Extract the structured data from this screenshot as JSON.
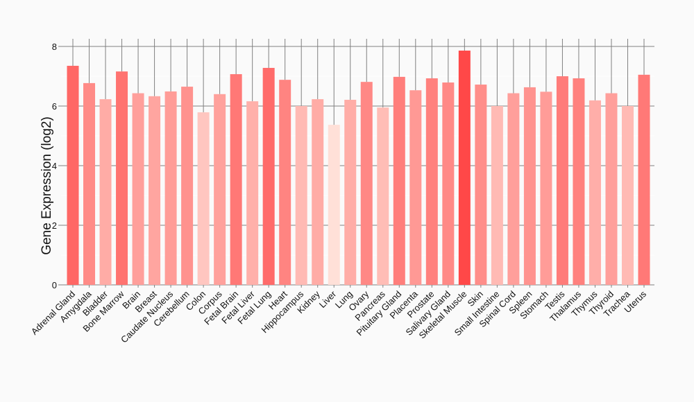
{
  "chart_data": {
    "type": "bar",
    "title": "",
    "xlabel": "",
    "ylabel": "Gene Expression (log2)",
    "ylim": [
      0,
      8
    ],
    "yticks": [
      0,
      2,
      4,
      6,
      8
    ],
    "grid": true,
    "categories": [
      "Adrenal Gland",
      "Amygdala",
      "Bladder",
      "Bone Marrow",
      "Brain",
      "Breast",
      "Caudate Nucleus",
      "Cerebellum",
      "Colon",
      "Corpus",
      "Fetal Brain",
      "Fetal Liver",
      "Fetal Lung",
      "Heart",
      "Hippocampus",
      "Kidney",
      "Liver",
      "Lung",
      "Ovary",
      "Pancreas",
      "Pituitary Gland",
      "Placenta",
      "Prostate",
      "Salivary Gland",
      "Skeletal Muscle",
      "Skin",
      "Small Intestine",
      "Spinal Cord",
      "Spleen",
      "Stomach",
      "Testis",
      "Thalamus",
      "Thymus",
      "Thyroid",
      "Trachea",
      "Uterus"
    ],
    "values": [
      7.35,
      6.77,
      6.23,
      7.16,
      6.43,
      6.33,
      6.49,
      6.65,
      5.79,
      6.4,
      7.07,
      6.16,
      7.28,
      6.88,
      6.0,
      6.23,
      5.37,
      6.21,
      6.81,
      5.95,
      6.98,
      6.53,
      6.93,
      6.79,
      7.86,
      6.72,
      6.0,
      6.43,
      6.63,
      6.48,
      7.0,
      6.93,
      6.19,
      6.43,
      6.0,
      7.05
    ],
    "color_low": "#ffe0d8",
    "color_high": "#ff4848"
  }
}
